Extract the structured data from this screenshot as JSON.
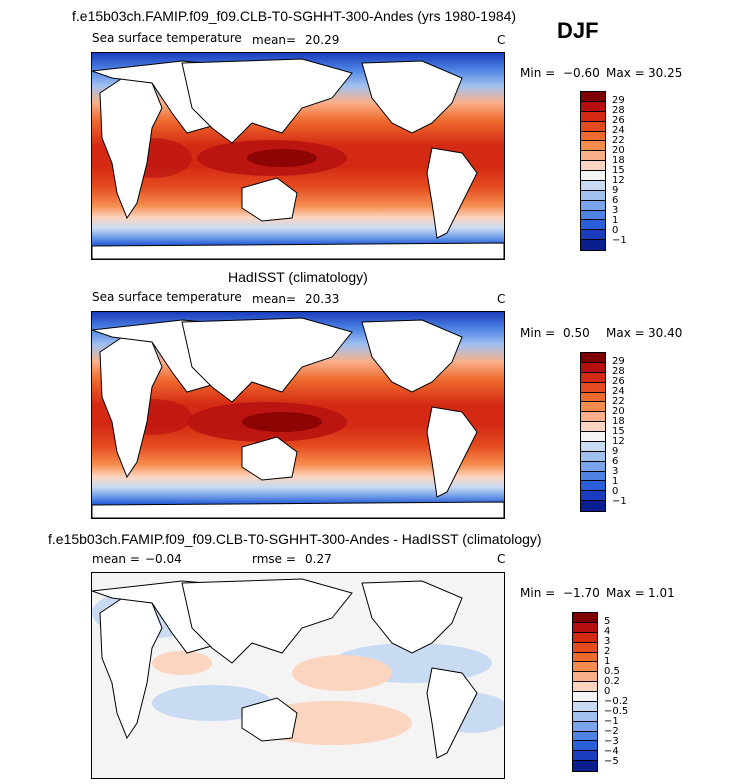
{
  "season": "DJF",
  "panel1": {
    "title": "f.e15b03ch.FAMIP.f09_f09.CLB-T0-SGHHT-300-Andes (yrs 1980-1984)",
    "variable": "Sea surface temperature",
    "mean_label": "mean=",
    "mean_value": "20.29",
    "units": "C",
    "min_label": "Min =",
    "min_value": "−0.60",
    "max_label": "Max =",
    "max_value": "30.25",
    "colorbar_labels": [
      "29",
      "28",
      "26",
      "24",
      "22",
      "20",
      "18",
      "15",
      "12",
      "9",
      "6",
      "3",
      "1",
      "0",
      "−1"
    ],
    "colorbar_colors": [
      "#7f0000",
      "#b50f0f",
      "#d42a14",
      "#e54b1f",
      "#ef6a2e",
      "#f58c4e",
      "#f9b08a",
      "#fcd5c1",
      "#f4f4f4",
      "#c9dbf3",
      "#a1c1ef",
      "#7aa5ea",
      "#4e83e4",
      "#2a5fd9",
      "#1a3dbd",
      "#0a1f8f"
    ]
  },
  "panel2": {
    "title": "HadISST (climatology)",
    "variable": "Sea surface temperature",
    "mean_label": "mean=",
    "mean_value": "20.33",
    "units": "C",
    "min_label": "Min =",
    "min_value": "0.50",
    "max_label": "Max =",
    "max_value": "30.40",
    "colorbar_labels": [
      "29",
      "28",
      "26",
      "24",
      "22",
      "20",
      "18",
      "15",
      "12",
      "9",
      "6",
      "3",
      "1",
      "0",
      "−1"
    ],
    "colorbar_colors": [
      "#7f0000",
      "#b50f0f",
      "#d42a14",
      "#e54b1f",
      "#ef6a2e",
      "#f58c4e",
      "#f9b08a",
      "#fcd5c1",
      "#f4f4f4",
      "#c9dbf3",
      "#a1c1ef",
      "#7aa5ea",
      "#4e83e4",
      "#2a5fd9",
      "#1a3dbd",
      "#0a1f8f"
    ]
  },
  "panel3": {
    "title": "f.e15b03ch.FAMIP.f09_f09.CLB-T0-SGHHT-300-Andes - HadISST (climatology)",
    "mean_label": "mean =",
    "mean_value": "−0.04",
    "rmse_label": "rmse =",
    "rmse_value": "0.27",
    "units": "C",
    "min_label": "Min =",
    "min_value": "−1.70",
    "max_label": "Max =",
    "max_value": "1.01",
    "colorbar_labels": [
      "5",
      "4",
      "3",
      "2",
      "1",
      "0.5",
      "0.2",
      "0",
      "−0.2",
      "−0.5",
      "−1",
      "−2",
      "−3",
      "−4",
      "−5"
    ],
    "colorbar_colors": [
      "#7f0000",
      "#b50f0f",
      "#d42a14",
      "#e54b1f",
      "#ef6a2e",
      "#f58c4e",
      "#f9b08a",
      "#fcd5c1",
      "#f4f4f4",
      "#c9dbf3",
      "#a1c1ef",
      "#7aa5ea",
      "#4e83e4",
      "#2a5fd9",
      "#1a3dbd",
      "#0a1f8f"
    ]
  }
}
